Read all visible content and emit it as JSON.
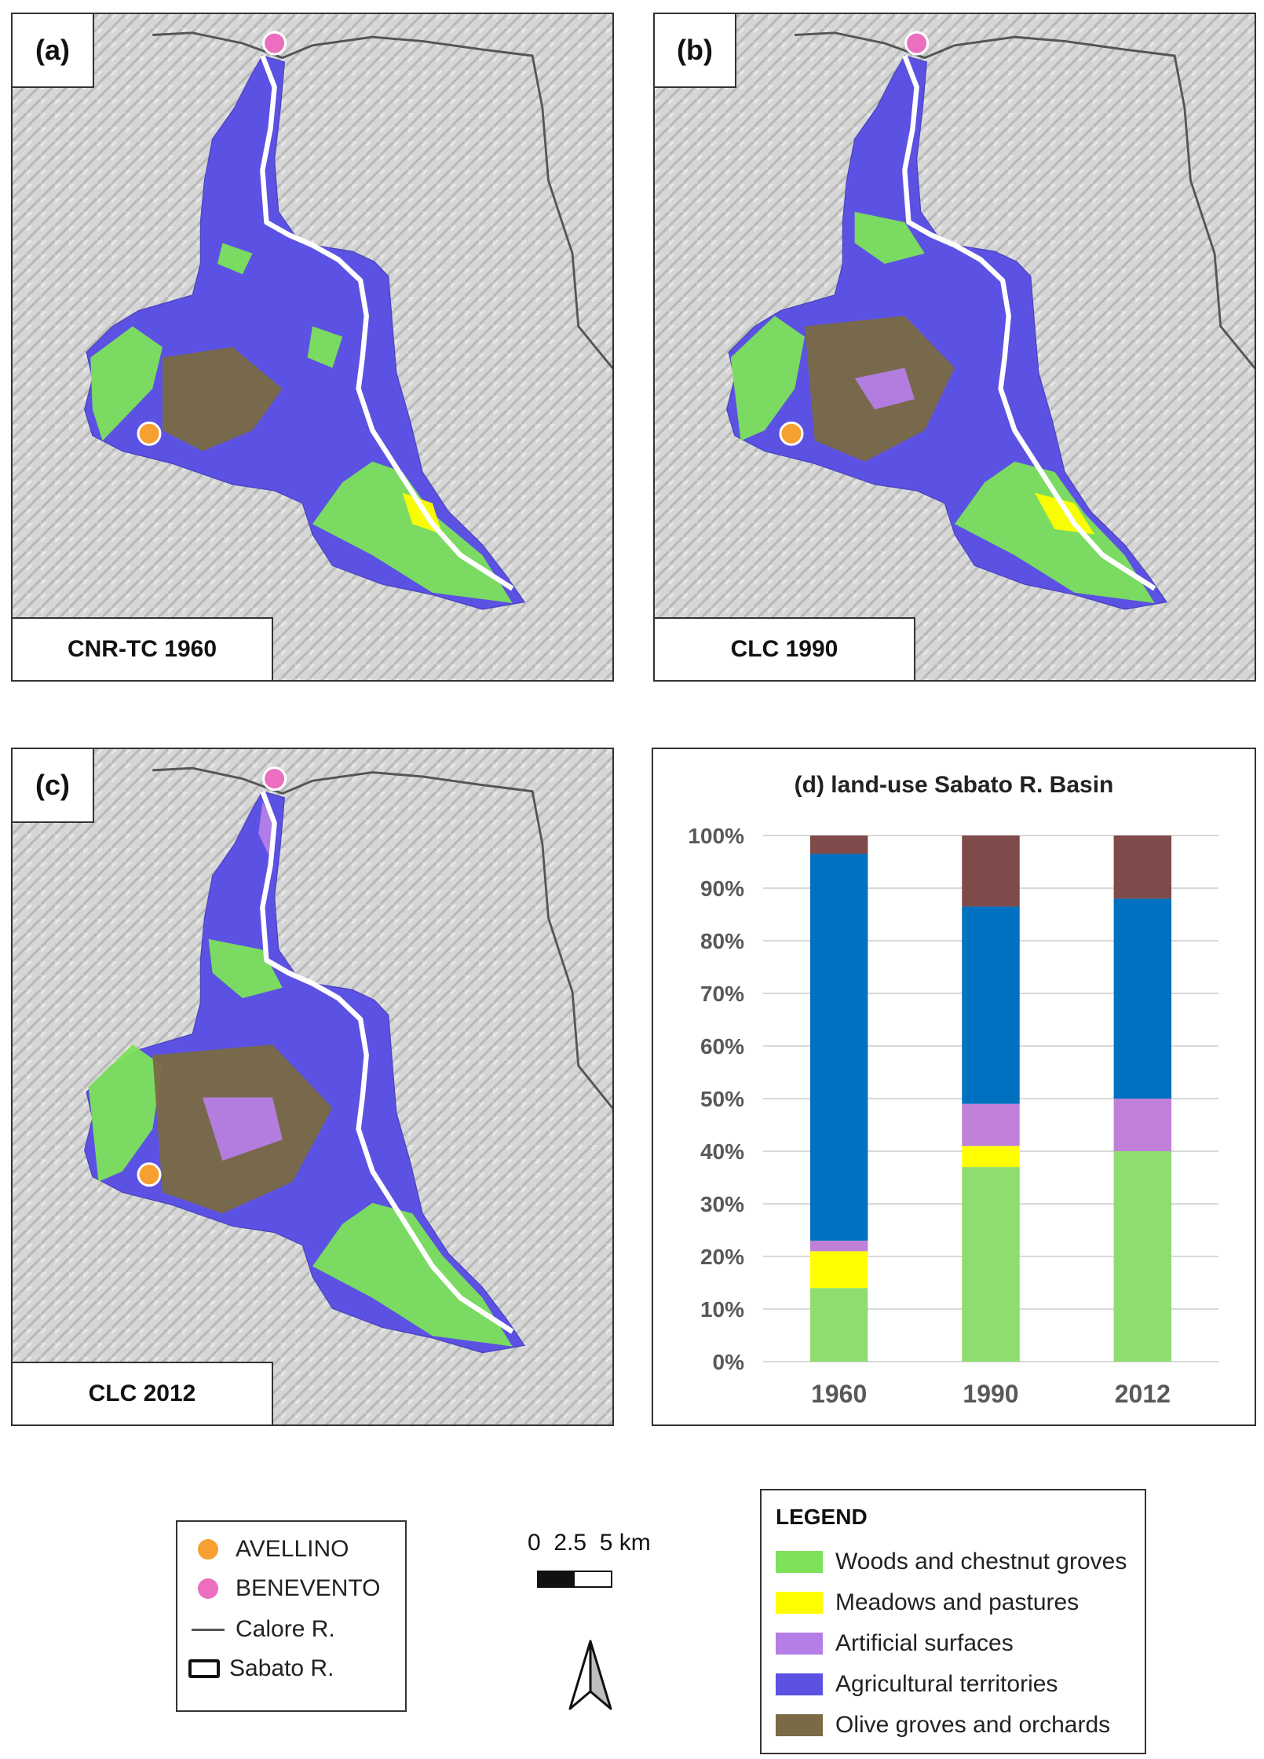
{
  "panels": [
    {
      "label": "(a)",
      "caption": "CNR-TC 1960"
    },
    {
      "label": "(b)",
      "caption": "CLC 1990"
    },
    {
      "label": "(c)",
      "caption": "CLC 2012"
    }
  ],
  "colors": {
    "woods": "#7de25a",
    "meadows": "#ffff00",
    "artificial": "#b57ee6",
    "agricultural": "#5b52e3",
    "olive": "#7a6a45",
    "avellino": "#f7a032",
    "benevento": "#ec6fbf",
    "calore": "#555555",
    "sabato": "#ffffff"
  },
  "key": {
    "avellino": "AVELLINO",
    "benevento": "BENEVENTO",
    "calore": "Calore R.",
    "sabato": "Sabato R."
  },
  "scale": {
    "label": "0  2.5  5 km"
  },
  "legend": {
    "title": "LEGEND",
    "items": [
      {
        "label": "Woods and chestnut groves",
        "color": "#7de25a"
      },
      {
        "label": "Meadows and pastures",
        "color": "#ffff00"
      },
      {
        "label": "Artificial surfaces",
        "color": "#b57ee6"
      },
      {
        "label": "Agricultural territories",
        "color": "#5b52e3"
      },
      {
        "label": "Olive groves and orchards",
        "color": "#7a6a45"
      }
    ]
  },
  "chart_data": {
    "type": "bar",
    "stacked": true,
    "title": "(d) land-use Sabato R. Basin",
    "categories": [
      "1960",
      "1990",
      "2012"
    ],
    "y_ticks": [
      "0%",
      "10%",
      "20%",
      "30%",
      "40%",
      "50%",
      "60%",
      "70%",
      "80%",
      "90%",
      "100%"
    ],
    "ylim": [
      0,
      100
    ],
    "grid": true,
    "series": [
      {
        "color": "#8fdd6e",
        "values": [
          14,
          37,
          40
        ]
      },
      {
        "color": "#ffff00",
        "values": [
          7,
          4,
          0
        ]
      },
      {
        "color": "#c080d8",
        "values": [
          2,
          8,
          10
        ]
      },
      {
        "color": "#0070c0",
        "values": [
          73.5,
          37.5,
          38
        ]
      },
      {
        "color": "#7f4a4a",
        "values": [
          3.5,
          13.5,
          12
        ]
      }
    ]
  }
}
